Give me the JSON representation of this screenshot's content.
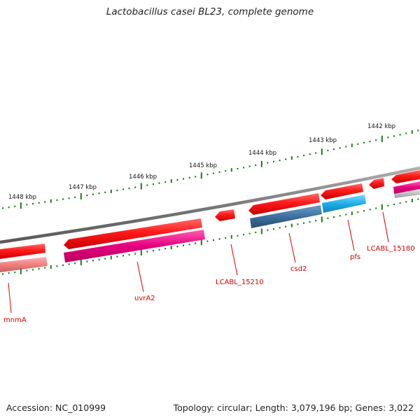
{
  "title": "Lactobacillus casei BL23, complete genome",
  "footer": {
    "accession": "Accession: NC_010999",
    "summary": "Topology: circular; Length: 3,079,196 bp; Genes: 3,022"
  },
  "colors": {
    "backbone": "#7a7a7a",
    "tick": "#1a7a1a",
    "gene_forward": "#e00000",
    "gene_forward_light": "#ff4c4c",
    "label": "#d40000",
    "magenta": "#e0007a",
    "steel_blue": "#3d6f9e",
    "sky_blue": "#1faee8",
    "salmon": "#f08080",
    "grey_light": "#c0c0c0"
  },
  "scale": {
    "unit": "kbp",
    "labels": [
      "1448 kbp",
      "1447 kbp",
      "1446 kbp",
      "1445 kbp",
      "1444 kbp",
      "1443 kbp",
      "1442 kbp"
    ]
  },
  "genes": [
    {
      "name": "mnmA",
      "strand": "forward",
      "color": "gene_forward",
      "second_track_color": "salmon"
    },
    {
      "name": "uvrA2",
      "strand": "forward",
      "color": "gene_forward",
      "second_track_color": "magenta"
    },
    {
      "name": "LCABL_15210",
      "strand": "forward",
      "color": "gene_forward"
    },
    {
      "name": "csd2",
      "strand": "forward",
      "color": "gene_forward",
      "second_track_color": "steel_blue"
    },
    {
      "name": "pfs",
      "strand": "forward",
      "color": "gene_forward",
      "second_track_color": "sky_blue"
    },
    {
      "name": "LCABL_15180",
      "strand": "forward",
      "color": "gene_forward"
    },
    {
      "name": "",
      "strand": "forward",
      "color": "gene_forward",
      "second_track_color": "magenta"
    }
  ]
}
